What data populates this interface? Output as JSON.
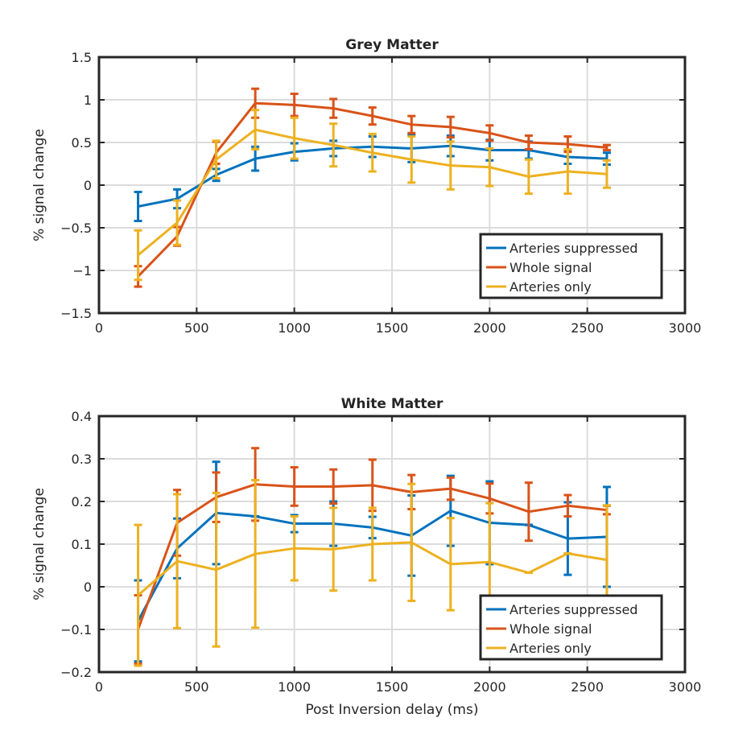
{
  "chart_data": [
    {
      "type": "line",
      "title": "Grey Matter",
      "xlabel": "",
      "ylabel": "% signal change",
      "xlim": [
        0,
        3000
      ],
      "ylim": [
        -1.5,
        1.5
      ],
      "xticks": [
        0,
        500,
        1000,
        1500,
        2000,
        2500,
        3000
      ],
      "xtick_labels": [
        "0",
        "500",
        "1000",
        "1500",
        "2000",
        "2500",
        "3000"
      ],
      "yticks": [
        -1.5,
        -1,
        -0.5,
        0,
        0.5,
        1,
        1.5
      ],
      "ytick_labels": [
        "−1.5",
        "−1",
        "−0.5",
        "0",
        "0.5",
        "1",
        "1.5"
      ],
      "grid": true,
      "legend_position": "bottom-right",
      "x": [
        200,
        400,
        600,
        800,
        1000,
        1200,
        1400,
        1600,
        1800,
        2000,
        2200,
        2400,
        2600
      ],
      "series": [
        {
          "name": "Arteries suppressed",
          "color": "#0072BD",
          "values": [
            -0.25,
            -0.16,
            0.12,
            0.31,
            0.39,
            0.43,
            0.45,
            0.43,
            0.46,
            0.41,
            0.41,
            0.33,
            0.31
          ],
          "errors": [
            0.17,
            0.11,
            0.07,
            0.14,
            0.1,
            0.09,
            0.12,
            0.16,
            0.12,
            0.12,
            0.1,
            0.08,
            0.07
          ]
        },
        {
          "name": "Whole signal",
          "color": "#D95319",
          "values": [
            -1.07,
            -0.6,
            0.38,
            0.96,
            0.94,
            0.9,
            0.81,
            0.71,
            0.68,
            0.61,
            0.5,
            0.48,
            0.44
          ],
          "errors": [
            0.12,
            0.11,
            0.13,
            0.17,
            0.13,
            0.11,
            0.1,
            0.1,
            0.12,
            0.09,
            0.08,
            0.09,
            0.03
          ]
        },
        {
          "name": "Arteries only",
          "color": "#EDB120",
          "values": [
            -0.82,
            -0.44,
            0.3,
            0.65,
            0.55,
            0.47,
            0.38,
            0.3,
            0.23,
            0.21,
            0.1,
            0.16,
            0.13
          ],
          "errors": [
            0.29,
            0.26,
            0.22,
            0.23,
            0.24,
            0.25,
            0.22,
            0.27,
            0.28,
            0.22,
            0.2,
            0.26,
            0.16
          ]
        }
      ]
    },
    {
      "type": "line",
      "title": "White Matter",
      "xlabel": "Post Inversion delay (ms)",
      "ylabel": "% signal change",
      "xlim": [
        0,
        3000
      ],
      "ylim": [
        -0.2,
        0.4
      ],
      "xticks": [
        0,
        500,
        1000,
        1500,
        2000,
        2500,
        3000
      ],
      "xtick_labels": [
        "0",
        "500",
        "1000",
        "1500",
        "2000",
        "2500",
        "3000"
      ],
      "yticks": [
        -0.2,
        -0.1,
        0,
        0.1,
        0.2,
        0.3,
        0.4
      ],
      "ytick_labels": [
        "−0.2",
        "−0.1",
        "0",
        "0.1",
        "0.2",
        "0.3",
        "0.4"
      ],
      "grid": true,
      "legend_position": "bottom-right",
      "x": [
        200,
        400,
        600,
        800,
        1000,
        1200,
        1400,
        1600,
        1800,
        2000,
        2200,
        2400,
        2600
      ],
      "series": [
        {
          "name": "Arteries suppressed",
          "color": "#0072BD",
          "values": [
            -0.08,
            0.09,
            0.173,
            0.165,
            0.148,
            0.148,
            0.139,
            0.12,
            0.178,
            0.15,
            0.145,
            0.113,
            0.117
          ],
          "errors": [
            0.095,
            0.07,
            0.12,
            0.0,
            0.02,
            0.052,
            0.025,
            0.094,
            0.082,
            0.097,
            0.0,
            0.085,
            0.117
          ]
        },
        {
          "name": "Whole signal",
          "color": "#D95319",
          "values": [
            -0.1,
            0.15,
            0.21,
            0.24,
            0.235,
            0.235,
            0.238,
            0.222,
            0.23,
            0.207,
            0.176,
            0.19,
            0.18
          ],
          "errors": [
            0.08,
            0.077,
            0.058,
            0.085,
            0.045,
            0.04,
            0.06,
            0.04,
            0.026,
            0.035,
            0.068,
            0.025,
            0.01
          ]
        },
        {
          "name": "Arteries only",
          "color": "#EDB120",
          "values": [
            -0.02,
            0.06,
            0.04,
            0.077,
            0.09,
            0.088,
            0.1,
            0.104,
            0.053,
            0.058,
            0.033,
            0.078,
            0.063
          ],
          "errors": [
            0.165,
            0.157,
            0.18,
            0.173,
            0.075,
            0.097,
            0.085,
            0.137,
            0.108,
            0.138,
            0.0,
            0.0,
            0.128
          ]
        }
      ]
    }
  ]
}
